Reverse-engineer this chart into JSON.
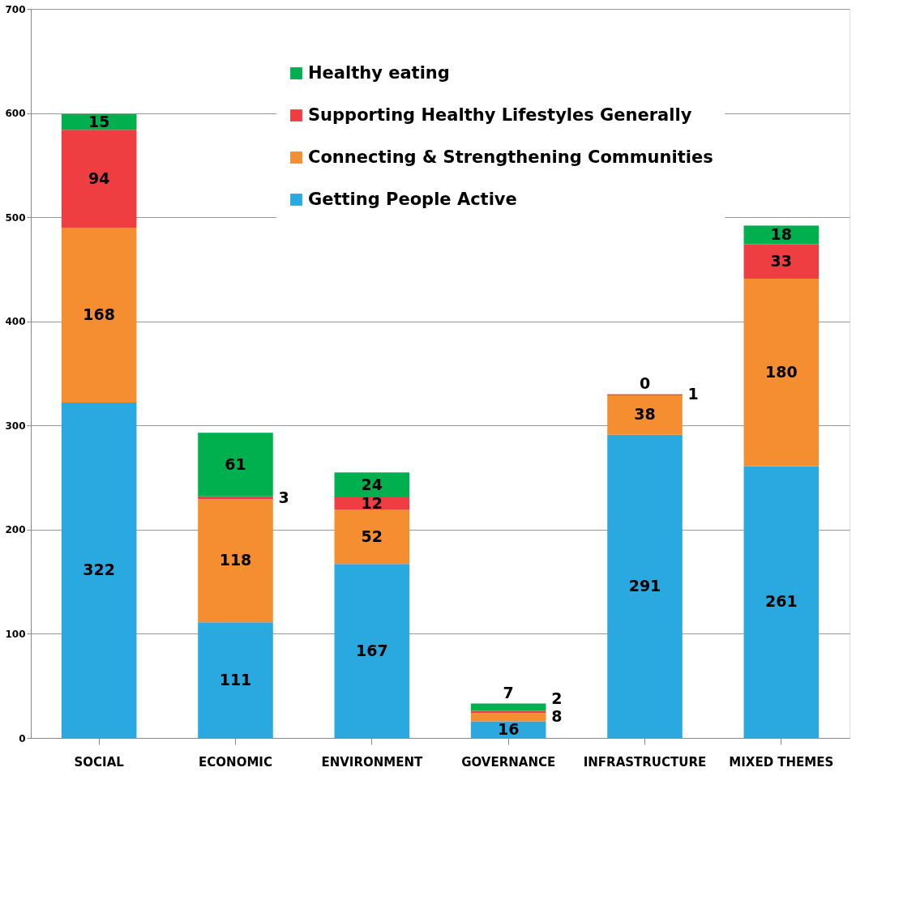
{
  "chart_data": {
    "type": "bar",
    "stacked": true,
    "categories": [
      "SOCIAL",
      "ECONOMIC",
      "ENVIRONMENT",
      "GOVERNANCE",
      "INFRASTRUCTURE",
      "MIXED THEMES"
    ],
    "series": [
      {
        "name": "Getting People Active",
        "color": "#29a9e0",
        "values": [
          322,
          111,
          167,
          16,
          291,
          261
        ]
      },
      {
        "name": "Connecting & Strengthening Communities",
        "color": "#f58d31",
        "values": [
          168,
          118,
          52,
          8,
          38,
          180
        ]
      },
      {
        "name": "Supporting Healthy Lifestyles Generally",
        "color": "#ef3e42",
        "values": [
          94,
          3,
          12,
          2,
          1,
          33
        ]
      },
      {
        "name": "Healthy eating",
        "color": "#00b04f",
        "values": [
          15,
          61,
          24,
          7,
          0,
          18
        ]
      }
    ],
    "ylim": [
      0,
      700
    ],
    "yticks": [
      0,
      100,
      200,
      300,
      400,
      500,
      600,
      700
    ],
    "grid": "y",
    "legend": "top",
    "data_labels": true
  }
}
